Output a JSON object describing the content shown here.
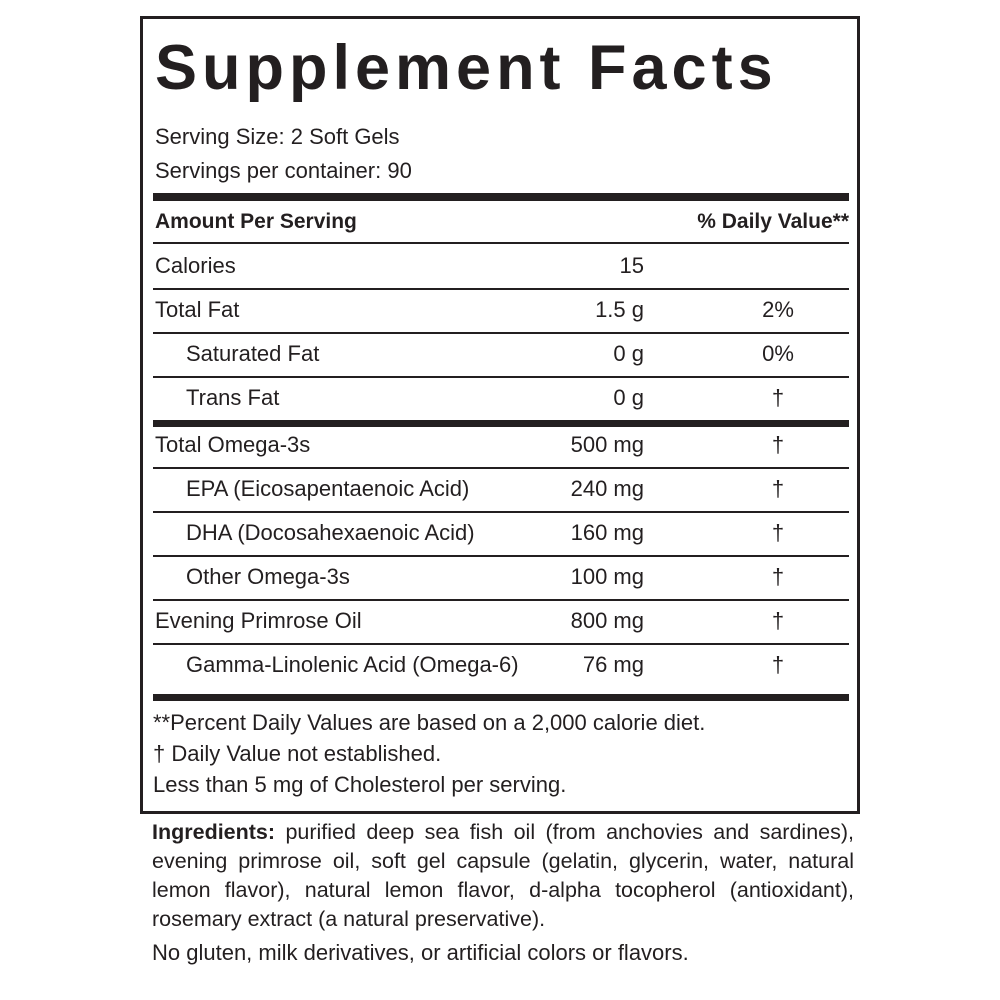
{
  "title": "Supplement Facts",
  "serving_size": "Serving Size: 2 Soft Gels",
  "servings_per_container": "Servings per container: 90",
  "header": {
    "amount": "Amount Per Serving",
    "dv": "% Daily Value**"
  },
  "rows": [
    {
      "name": "Calories",
      "amount": "15",
      "dv": ""
    },
    {
      "name": "Total Fat",
      "amount": "1.5 g",
      "dv": "2%"
    },
    {
      "name": "Saturated Fat",
      "amount": "0 g",
      "dv": "0%"
    },
    {
      "name": "Trans Fat",
      "amount": "0 g",
      "dv": "†"
    },
    {
      "name": "Total Omega-3s",
      "amount": "500 mg",
      "dv": "†"
    },
    {
      "name": "EPA (Eicosapentaenoic Acid)",
      "amount": "240 mg",
      "dv": "†"
    },
    {
      "name": "DHA (Docosahexaenoic Acid)",
      "amount": "160 mg",
      "dv": "†"
    },
    {
      "name": "Other Omega-3s",
      "amount": "100 mg",
      "dv": "†"
    },
    {
      "name": "Evening Primrose Oil",
      "amount": "800 mg",
      "dv": "†"
    },
    {
      "name": "Gamma-Linolenic Acid (Omega-6)",
      "amount": "76 mg",
      "dv": "†"
    }
  ],
  "footnotes": [
    "**Percent Daily Values are based on a 2,000 calorie diet.",
    "†  Daily Value not established.",
    "Less than 5 mg of Cholesterol per serving."
  ],
  "ingredients": {
    "label": "Ingredients:",
    "text": " purified deep sea fish oil (from anchovies and sardines), evening primrose oil, soft gel capsule (gelatin, glycerin, water, natural lemon flavor), natural lemon flavor, d-alpha tocopherol (antioxidant), rosemary extract (a natural preservative)."
  },
  "allergen_note": "No gluten, milk derivatives, or artificial colors or flavors."
}
